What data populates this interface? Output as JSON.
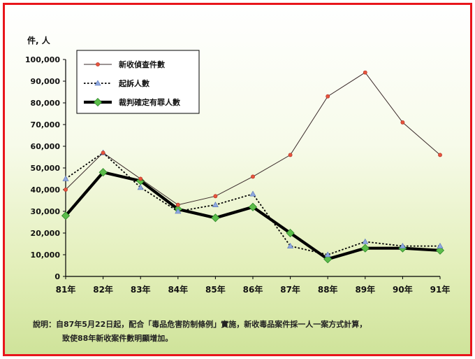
{
  "chart_data": {
    "type": "line",
    "ylabel": "件, 人",
    "categories": [
      "81年",
      "82年",
      "83年",
      "84年",
      "85年",
      "86年",
      "87年",
      "88年",
      "89年",
      "90年",
      "91年"
    ],
    "y_ticks": [
      "0",
      "10,000",
      "20,000",
      "30,000",
      "40,000",
      "50,000",
      "60,000",
      "70,000",
      "80,000",
      "90,000",
      "100,000"
    ],
    "ylim": [
      0,
      100000
    ],
    "grid": false,
    "legend_position": "top-left",
    "series": [
      {
        "name": "新收偵查件數",
        "color": "#d0342c",
        "style": "thin-solid-dot",
        "values": [
          40000,
          57000,
          45000,
          33000,
          37000,
          46000,
          56000,
          83000,
          94000,
          71000,
          56000
        ]
      },
      {
        "name": "起訴人數",
        "color": "#000000",
        "style": "dotted-triangle",
        "values": [
          45000,
          57000,
          41000,
          30000,
          33000,
          38000,
          14000,
          10000,
          16000,
          14000,
          14000
        ]
      },
      {
        "name": "裁判確定有罪人數",
        "color": "#000000",
        "style": "thick-diamond",
        "values": [
          28000,
          48000,
          44000,
          31000,
          27000,
          32000,
          20000,
          8000,
          13000,
          13000,
          12000
        ]
      }
    ]
  },
  "note": {
    "line1": "說明：自87年5月22日起，配合「毒品危害防制條例」實施，新收毒品案件採一人一案方式計算，",
    "line2": "致使88年新收案件數明顯增加。"
  }
}
